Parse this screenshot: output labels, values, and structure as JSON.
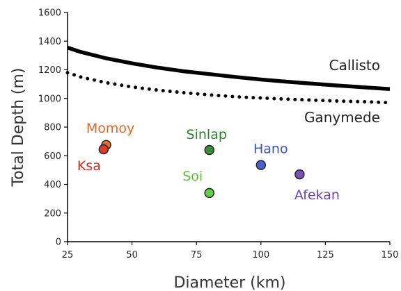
{
  "chart_data": {
    "type": "scatter",
    "xlabel": "Diameter (km)",
    "ylabel": "Total Depth (m)",
    "xlim": [
      25,
      150
    ],
    "ylim": [
      0,
      1600
    ],
    "x_ticks": [
      "25",
      "50",
      "75",
      "100",
      "125",
      "150"
    ],
    "y_ticks": [
      "0",
      "200",
      "400",
      "600",
      "800",
      "1000",
      "1200",
      "1400",
      "1600"
    ],
    "grid": false,
    "curves": [
      {
        "name": "Callisto",
        "style": "solid",
        "color": "#000000",
        "x": [
          25,
          30,
          40,
          50,
          60,
          70,
          80,
          90,
          100,
          110,
          120,
          130,
          140,
          150
        ],
        "y": [
          1355,
          1325,
          1280,
          1245,
          1215,
          1190,
          1170,
          1150,
          1132,
          1117,
          1103,
          1090,
          1078,
          1065
        ]
      },
      {
        "name": "Ganymede",
        "style": "dotted",
        "color": "#000000",
        "x": [
          25,
          30,
          40,
          50,
          60,
          70,
          80,
          90,
          100,
          110,
          120,
          130,
          140,
          150
        ],
        "y": [
          1180,
          1150,
          1110,
          1080,
          1058,
          1040,
          1025,
          1012,
          1003,
          995,
          988,
          982,
          977,
          970
        ]
      }
    ],
    "points": [
      {
        "name": "Momoy",
        "x": 40,
        "y": 675,
        "color": "#e07030",
        "label_color": "#d8692c"
      },
      {
        "name": "Ksa",
        "x": 39,
        "y": 645,
        "color": "#e03a2a",
        "label_color": "#d42a1e"
      },
      {
        "name": "Sinlap",
        "x": 80,
        "y": 640,
        "color": "#3c8a3c",
        "label_color": "#2f7f2f"
      },
      {
        "name": "Soi",
        "x": 80,
        "y": 340,
        "color": "#66cc44",
        "label_color": "#5cbf3c"
      },
      {
        "name": "Hano",
        "x": 100,
        "y": 535,
        "color": "#4a5fd0",
        "label_color": "#3a55c8"
      },
      {
        "name": "Afekan",
        "x": 115,
        "y": 470,
        "color": "#7a4fb8",
        "label_color": "#6c45a8"
      }
    ]
  }
}
